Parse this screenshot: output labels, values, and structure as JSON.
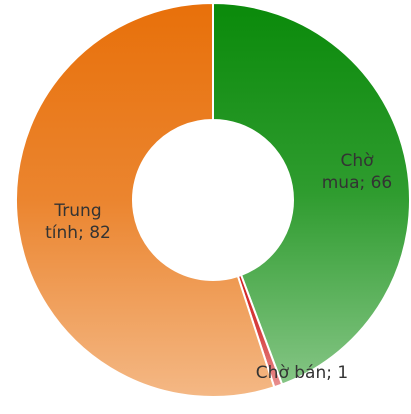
{
  "chart_data": {
    "type": "donut",
    "categories": [
      "Chờ mua",
      "Chờ bán",
      "Trung tính"
    ],
    "values": [
      66,
      1,
      82
    ],
    "value_labels": [
      "Chờ mua; 66",
      "Chờ bán; 1",
      "Trung tính; 82"
    ],
    "colors": [
      "#0a8a0a",
      "#d02020",
      "#e8700a"
    ]
  }
}
